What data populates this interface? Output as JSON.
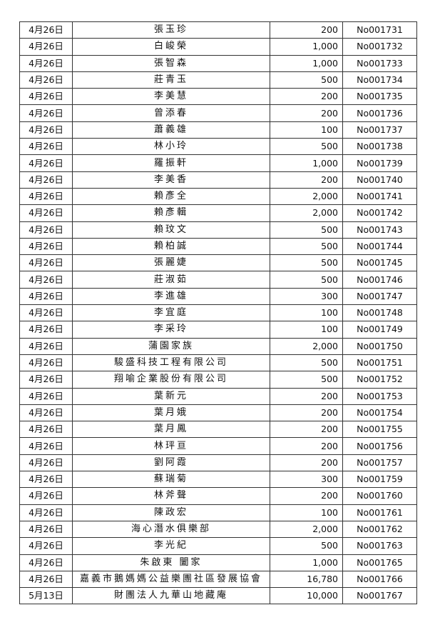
{
  "rows": [
    {
      "date": "4月26日",
      "name": "張玉珍",
      "amount": "200",
      "receipt": "No001731"
    },
    {
      "date": "4月26日",
      "name": "白峻榮",
      "amount": "1,000",
      "receipt": "No001732"
    },
    {
      "date": "4月26日",
      "name": "張智森",
      "amount": "1,000",
      "receipt": "No001733"
    },
    {
      "date": "4月26日",
      "name": "莊青玉",
      "amount": "500",
      "receipt": "No001734"
    },
    {
      "date": "4月26日",
      "name": "李美慧",
      "amount": "200",
      "receipt": "No001735"
    },
    {
      "date": "4月26日",
      "name": "曾添春",
      "amount": "200",
      "receipt": "No001736"
    },
    {
      "date": "4月26日",
      "name": "蕭義雄",
      "amount": "100",
      "receipt": "No001737"
    },
    {
      "date": "4月26日",
      "name": "林小玲",
      "amount": "500",
      "receipt": "No001738"
    },
    {
      "date": "4月26日",
      "name": "羅振軒",
      "amount": "1,000",
      "receipt": "No001739"
    },
    {
      "date": "4月26日",
      "name": "李美香",
      "amount": "200",
      "receipt": "No001740"
    },
    {
      "date": "4月26日",
      "name": "賴彥全",
      "amount": "2,000",
      "receipt": "No001741"
    },
    {
      "date": "4月26日",
      "name": "賴彥輯",
      "amount": "2,000",
      "receipt": "No001742"
    },
    {
      "date": "4月26日",
      "name": "賴玟文",
      "amount": "500",
      "receipt": "No001743"
    },
    {
      "date": "4月26日",
      "name": "賴柏誠",
      "amount": "500",
      "receipt": "No001744"
    },
    {
      "date": "4月26日",
      "name": "張麗婕",
      "amount": "500",
      "receipt": "No001745"
    },
    {
      "date": "4月26日",
      "name": "莊淑茹",
      "amount": "500",
      "receipt": "No001746"
    },
    {
      "date": "4月26日",
      "name": "李進雄",
      "amount": "300",
      "receipt": "No001747"
    },
    {
      "date": "4月26日",
      "name": "李宜庭",
      "amount": "100",
      "receipt": "No001748"
    },
    {
      "date": "4月26日",
      "name": "李采玲",
      "amount": "100",
      "receipt": "No001749"
    },
    {
      "date": "4月26日",
      "name": "蒲園家族",
      "amount": "2,000",
      "receipt": "No001750"
    },
    {
      "date": "4月26日",
      "name": "駿盛科技工程有限公司",
      "amount": "500",
      "receipt": "No001751"
    },
    {
      "date": "4月26日",
      "name": "翔喻企業股份有限公司",
      "amount": "500",
      "receipt": "No001752"
    },
    {
      "date": "4月26日",
      "name": "葉新元",
      "amount": "200",
      "receipt": "No001753"
    },
    {
      "date": "4月26日",
      "name": "葉月娥",
      "amount": "200",
      "receipt": "No001754"
    },
    {
      "date": "4月26日",
      "name": "葉月鳳",
      "amount": "200",
      "receipt": "No001755"
    },
    {
      "date": "4月26日",
      "name": "林玶亘",
      "amount": "200",
      "receipt": "No001756"
    },
    {
      "date": "4月26日",
      "name": "劉阿霞",
      "amount": "200",
      "receipt": "No001757"
    },
    {
      "date": "4月26日",
      "name": "蘇瑞菊",
      "amount": "300",
      "receipt": "No001759"
    },
    {
      "date": "4月26日",
      "name": "林斧聲",
      "amount": "200",
      "receipt": "No001760"
    },
    {
      "date": "4月26日",
      "name": "陳政宏",
      "amount": "100",
      "receipt": "No001761"
    },
    {
      "date": "4月26日",
      "name": "海心潛水俱樂部",
      "amount": "2,000",
      "receipt": "No001762"
    },
    {
      "date": "4月26日",
      "name": "李光紀",
      "amount": "500",
      "receipt": "No001763"
    },
    {
      "date": "4月26日",
      "name": "朱啟東 闔家",
      "amount": "1,000",
      "receipt": "No001765"
    },
    {
      "date": "4月26日",
      "name": "嘉義市鵝媽媽公益樂團社區發展協會",
      "amount": "16,780",
      "receipt": "No001766"
    },
    {
      "date": "5月13日",
      "name": "財團法人九華山地藏庵",
      "amount": "10,000",
      "receipt": "No001767"
    }
  ]
}
